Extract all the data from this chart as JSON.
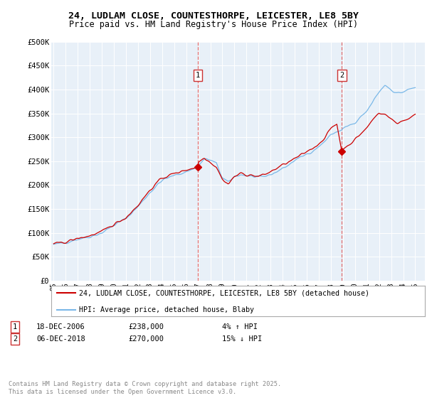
{
  "title_line1": "24, LUDLAM CLOSE, COUNTESTHORPE, LEICESTER, LE8 5BY",
  "title_line2": "Price paid vs. HM Land Registry's House Price Index (HPI)",
  "bg_color": "#e8f0f8",
  "hpi_color": "#7ab8e8",
  "price_color": "#cc0000",
  "marker1_label": "1",
  "marker2_label": "2",
  "marker1_info": "18-DEC-2006    £238,000    4% ↑ HPI",
  "marker2_info": "06-DEC-2018    £270,000    15% ↓ HPI",
  "legend_house": "24, LUDLAM CLOSE, COUNTESTHORPE, LEICESTER, LE8 5BY (detached house)",
  "legend_hpi": "HPI: Average price, detached house, Blaby",
  "footnote": "Contains HM Land Registry data © Crown copyright and database right 2025.\nThis data is licensed under the Open Government Licence v3.0.",
  "marker1_x": 2006.96,
  "marker2_x": 2018.92,
  "marker1_y": 238000,
  "marker2_y": 270000,
  "vline1_x": 2006.96,
  "vline2_x": 2018.92,
  "ylim": [
    0,
    500000
  ],
  "xlim": [
    1994.8,
    2025.8
  ],
  "ytick_labels": [
    "£0",
    "£50K",
    "£100K",
    "£150K",
    "£200K",
    "£250K",
    "£300K",
    "£350K",
    "£400K",
    "£450K",
    "£500K"
  ],
  "yticks": [
    0,
    50000,
    100000,
    150000,
    200000,
    250000,
    300000,
    350000,
    400000,
    450000,
    500000
  ]
}
